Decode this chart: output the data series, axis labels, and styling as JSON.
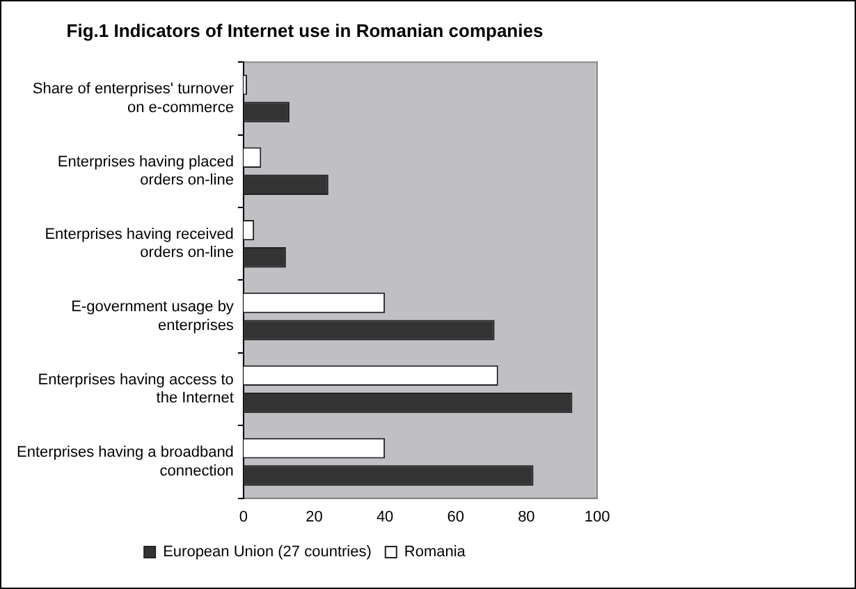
{
  "chart_data": {
    "type": "bar",
    "orientation": "horizontal",
    "title": "Fig.1 Indicators of Internet use in Romanian companies",
    "categories": [
      "Share of enterprises' turnover on e-commerce",
      "Enterprises having placed orders on-line",
      "Enterprises having received orders on-line",
      "E-government usage by enterprises",
      "Enterprises having access to the Internet",
      "Enterprises having a broadband connection"
    ],
    "series": [
      {
        "name": "European Union (27 countries)",
        "color": "#333333",
        "values": [
          13,
          24,
          12,
          71,
          93,
          82
        ]
      },
      {
        "name": "Romania",
        "color": "#ffffff",
        "values": [
          1,
          5,
          3,
          40,
          72,
          40
        ]
      }
    ],
    "xlim": [
      0,
      100
    ],
    "xticks": [
      0,
      20,
      40,
      60,
      80,
      100
    ],
    "grid": false,
    "legend": "bottom"
  }
}
